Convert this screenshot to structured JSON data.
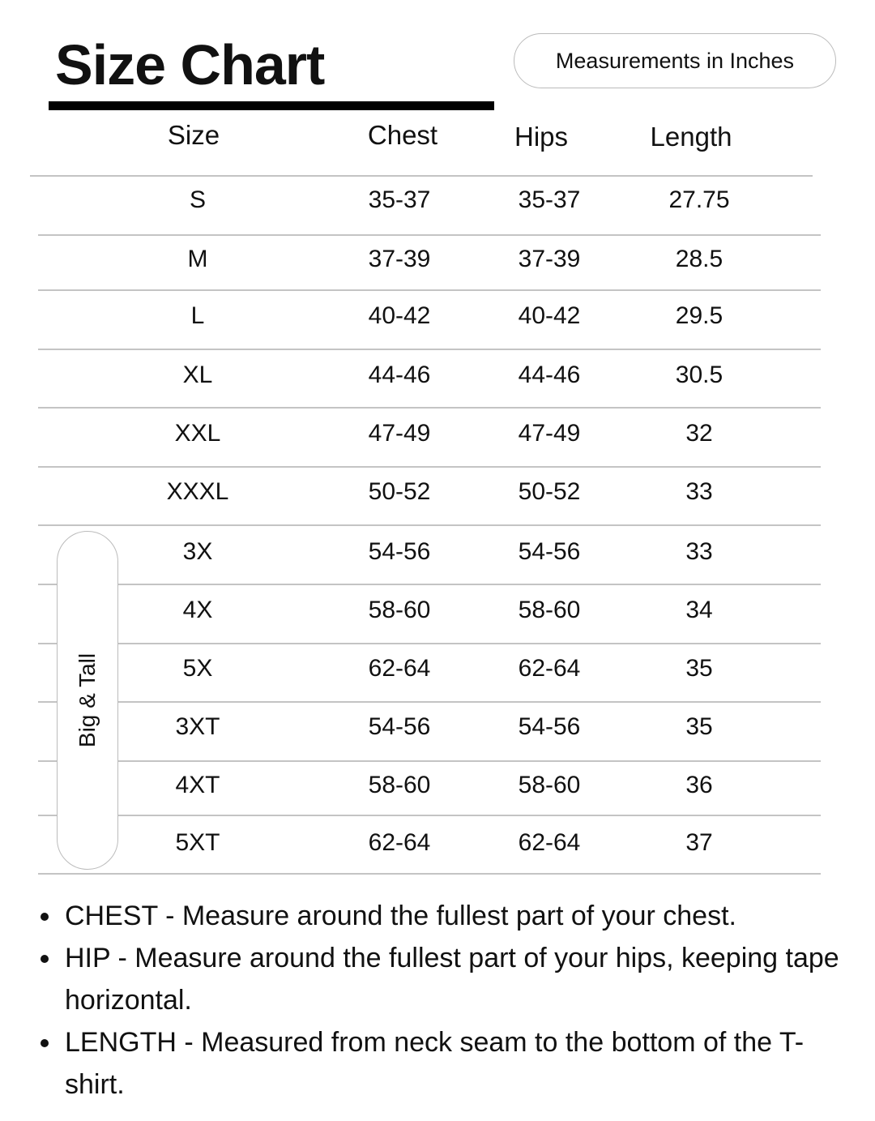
{
  "title": "Size Chart",
  "units_badge": "Measurements in Inches",
  "columns": [
    "Size",
    "Chest",
    "Hips",
    "Length"
  ],
  "rows": [
    [
      "S",
      "35-37",
      "35-37",
      "27.75"
    ],
    [
      "M",
      "37-39",
      "37-39",
      "28.5"
    ],
    [
      "L",
      "40-42",
      "40-42",
      "29.5"
    ],
    [
      "XL",
      "44-46",
      "44-46",
      "30.5"
    ],
    [
      "XXL",
      "47-49",
      "47-49",
      "32"
    ],
    [
      "XXXL",
      "50-52",
      "50-52",
      "33"
    ],
    [
      "3X",
      "54-56",
      "54-56",
      "33"
    ],
    [
      "4X",
      "58-60",
      "58-60",
      "34"
    ],
    [
      "5X",
      "62-64",
      "62-64",
      "35"
    ],
    [
      "3XT",
      "54-56",
      "54-56",
      "35"
    ],
    [
      "4XT",
      "58-60",
      "58-60",
      "36"
    ],
    [
      "5XT",
      "62-64",
      "62-64",
      "37"
    ]
  ],
  "group_label": "Big & Tall",
  "notes": [
    "CHEST - Measure around the fullest part of your chest.",
    "HIP - Measure around the fullest part of your hips, keeping tape horizontal.",
    "LENGTH - Measured from neck seam to the bottom of the T-shirt."
  ]
}
